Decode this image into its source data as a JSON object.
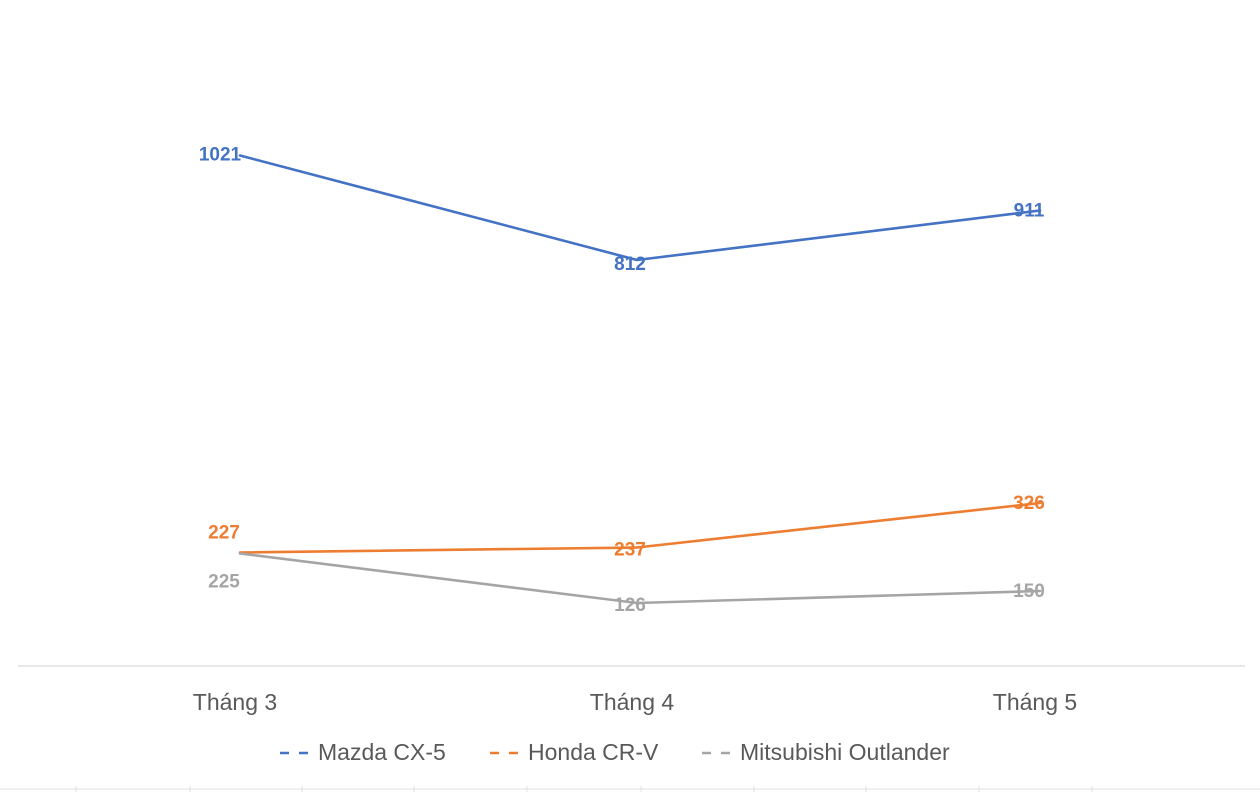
{
  "chart_data": {
    "type": "line",
    "categories": [
      "Tháng 3",
      "Tháng 4",
      "Tháng 5"
    ],
    "series": [
      {
        "name": "Mazda CX-5",
        "values": [
          1021,
          812,
          911
        ],
        "color": "#4472C4"
      },
      {
        "name": "Honda CR-V",
        "values": [
          227,
          237,
          326
        ],
        "color": "#ED7D31"
      },
      {
        "name": "Mitsubishi Outlander",
        "values": [
          225,
          126,
          150
        ],
        "color": "#A5A5A5"
      }
    ],
    "title": "",
    "xlabel": "",
    "ylabel": "",
    "ylim": [
      0,
      1200
    ],
    "grid": false,
    "y_axis_visible": false,
    "data_labels": true,
    "legend_position": "bottom"
  }
}
